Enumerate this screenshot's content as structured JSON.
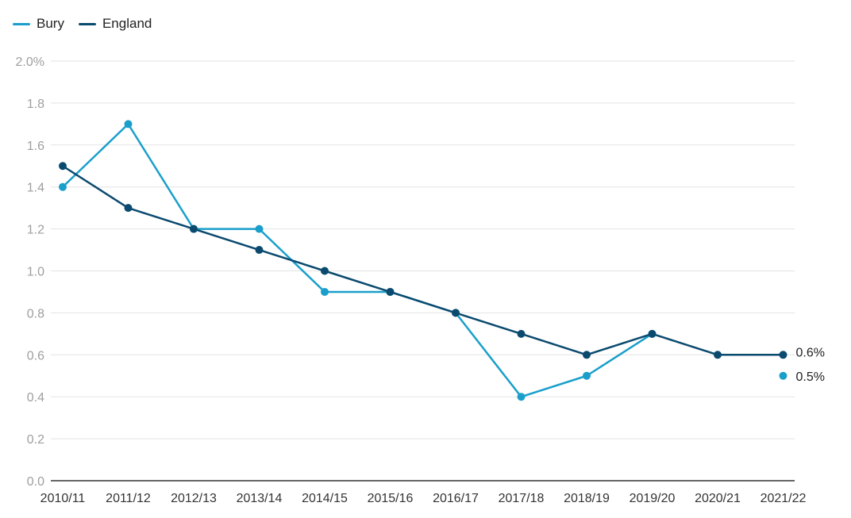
{
  "legend": {
    "items": [
      {
        "label": "Bury",
        "color": "#1a9fcb"
      },
      {
        "label": "England",
        "color": "#0b4a6f"
      }
    ]
  },
  "chart_data": {
    "type": "line",
    "categories": [
      "2010/11",
      "2011/12",
      "2012/13",
      "2013/14",
      "2014/15",
      "2015/16",
      "2016/17",
      "2017/18",
      "2018/19",
      "2019/20",
      "2020/21",
      "2021/22"
    ],
    "series": [
      {
        "name": "Bury",
        "color": "#1a9fcb",
        "values": [
          1.4,
          1.7,
          1.2,
          1.2,
          0.9,
          0.9,
          0.8,
          0.4,
          0.5,
          0.7,
          null,
          0.5
        ],
        "end_label": "0.5%"
      },
      {
        "name": "England",
        "color": "#0b4a6f",
        "values": [
          1.5,
          1.3,
          1.2,
          1.1,
          1.0,
          0.9,
          0.8,
          0.7,
          0.6,
          0.7,
          0.6,
          0.6
        ],
        "end_label": "0.6%"
      }
    ],
    "ylim": [
      0,
      2.0
    ],
    "y_ticks": [
      "0.0",
      "0.2",
      "0.4",
      "0.6",
      "0.8",
      "1.0",
      "1.2",
      "1.4",
      "1.6",
      "1.8",
      "2.0%"
    ],
    "grid": true,
    "legend_position": "top-left"
  }
}
